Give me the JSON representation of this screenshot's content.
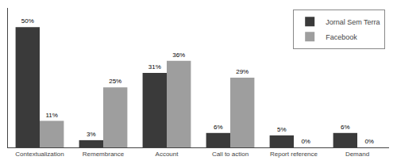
{
  "chart_data": {
    "type": "bar",
    "categories": [
      "Contextualization",
      "Remembrance",
      "Account",
      "Call to action",
      "Report reference",
      "Demand"
    ],
    "series": [
      {
        "name": "Jornal Sem Terra",
        "color": "#3a3a3a",
        "values": [
          50,
          3,
          31,
          6,
          5,
          6
        ],
        "value_labels": [
          "50%",
          "3%",
          "31%",
          "6%",
          "5%",
          "6%"
        ]
      },
      {
        "name": "Facebook",
        "color": "#9e9e9e",
        "values": [
          11,
          25,
          36,
          29,
          0,
          0
        ],
        "value_labels": [
          "11%",
          "25%",
          "36%",
          "29%",
          "0%",
          "0%"
        ]
      }
    ],
    "ylim": [
      0,
      58
    ],
    "yticks": [],
    "grid": false,
    "legend": "upper right",
    "data_labels": true,
    "tick_labels": "x"
  }
}
